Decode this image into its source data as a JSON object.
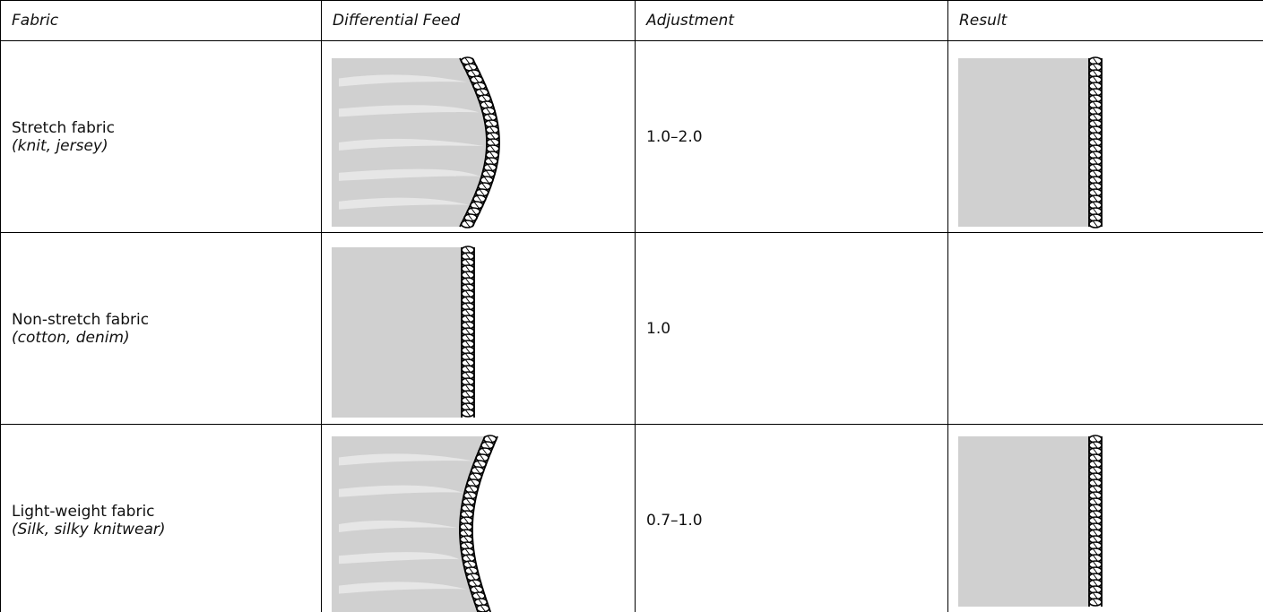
{
  "table": {
    "headers": [
      "Fabric",
      "Differential Feed",
      "Adjustment",
      "Result"
    ],
    "rows": [
      {
        "fabric": "Stretch fabric",
        "note": "(knit, jersey)",
        "adjustment": "1.0–2.0"
      },
      {
        "fabric": "Non-stretch fabric",
        "note": "(cotton, denim)",
        "adjustment": "1.0"
      },
      {
        "fabric": "Light-weight fabric",
        "note": "(Silk, silky knitwear)",
        "adjustment": "0.7–1.0"
      }
    ]
  }
}
